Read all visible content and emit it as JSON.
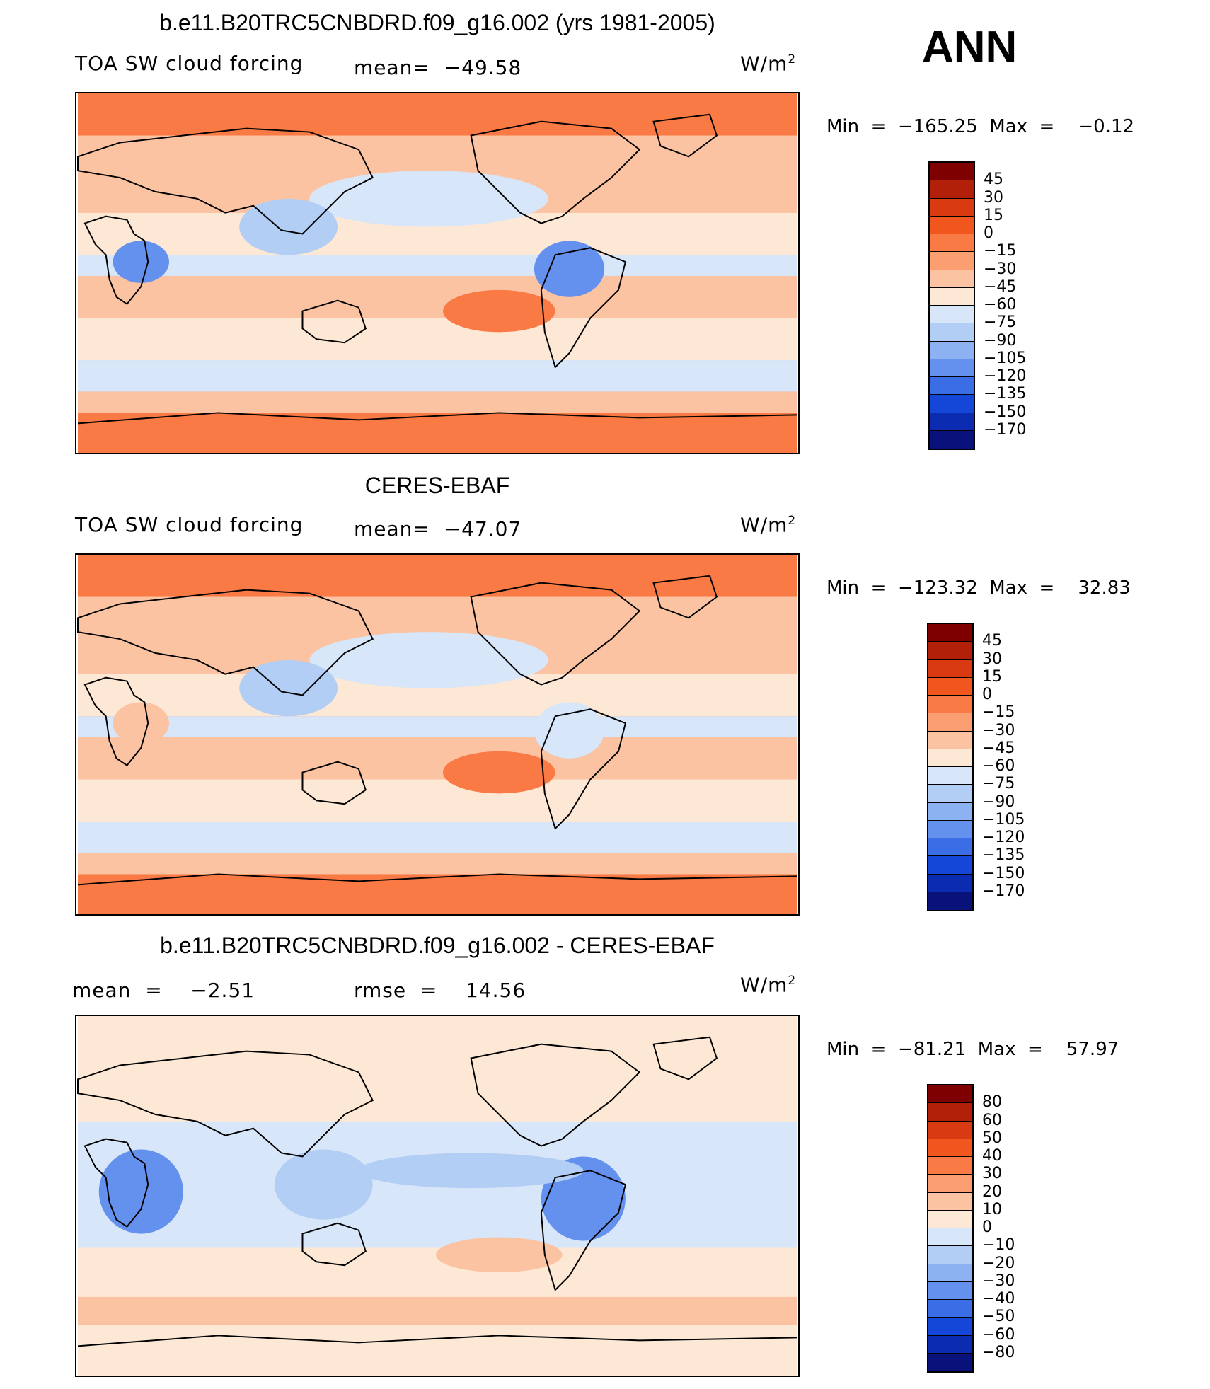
{
  "panels": [
    {
      "title": "b.e11.B20TRC5CNBDRD.f09_g16.002 (yrs 1981-2005)",
      "variable": "TOA SW cloud forcing",
      "stat1": "mean=  −49.58",
      "stat2": "",
      "units": "W/m",
      "units_sup": "2",
      "minmax": "Min  =  −165.25  Max  =    −0.12",
      "colorbar": {
        "labels": [
          "45",
          "30",
          "15",
          "0",
          "−15",
          "−30",
          "−45",
          "−60",
          "−75",
          "−90",
          "−105",
          "−120",
          "−135",
          "−150",
          "−170"
        ],
        "colors": [
          "#7f0000",
          "#b2200a",
          "#d93a12",
          "#f2561f",
          "#fa7a45",
          "#fb9e72",
          "#fcc3a3",
          "#fde8d5",
          "#d7e6f8",
          "#b2cef5",
          "#8cb2f2",
          "#6591ee",
          "#3b6de6",
          "#1447d8",
          "#0b2bb0",
          "#08127a"
        ]
      }
    },
    {
      "title": "CERES-EBAF",
      "variable": "TOA SW cloud forcing",
      "stat1": "mean=  −47.07",
      "stat2": "",
      "units": "W/m",
      "units_sup": "2",
      "minmax": "Min  =  −123.32  Max  =    32.83",
      "colorbar": {
        "labels": [
          "45",
          "30",
          "15",
          "0",
          "−15",
          "−30",
          "−45",
          "−60",
          "−75",
          "−90",
          "−105",
          "−120",
          "−135",
          "−150",
          "−170"
        ],
        "colors": [
          "#7f0000",
          "#b2200a",
          "#d93a12",
          "#f2561f",
          "#fa7a45",
          "#fb9e72",
          "#fcc3a3",
          "#fde8d5",
          "#d7e6f8",
          "#b2cef5",
          "#8cb2f2",
          "#6591ee",
          "#3b6de6",
          "#1447d8",
          "#0b2bb0",
          "#08127a"
        ]
      }
    },
    {
      "title": "b.e11.B20TRC5CNBDRD.f09_g16.002 - CERES-EBAF",
      "variable": "mean  =    −2.51",
      "stat1": "rmse  =    14.56",
      "stat2": "",
      "units": "W/m",
      "units_sup": "2",
      "minmax": "Min  =  −81.21  Max  =    57.97",
      "colorbar": {
        "labels": [
          "80",
          "60",
          "50",
          "40",
          "30",
          "20",
          "10",
          "0",
          "−10",
          "−20",
          "−30",
          "−40",
          "−50",
          "−60",
          "−80"
        ],
        "colors": [
          "#7f0000",
          "#b2200a",
          "#d93a12",
          "#f2561f",
          "#fa7a45",
          "#fb9e72",
          "#fcc3a3",
          "#fde8d5",
          "#d7e6f8",
          "#b2cef5",
          "#8cb2f2",
          "#6591ee",
          "#3b6de6",
          "#1447d8",
          "#0b2bb0",
          "#08127a"
        ]
      }
    }
  ],
  "season": "ANN",
  "map_colors": {
    "polar": "#fa7a45",
    "mid": "#fcc3a3",
    "pale": "#fde8d5",
    "blue_light": "#d7e6f8",
    "blue_mid": "#b2cef5",
    "blue_deep": "#6591ee",
    "blue_dark": "#1447d8",
    "coast": "#000000"
  }
}
